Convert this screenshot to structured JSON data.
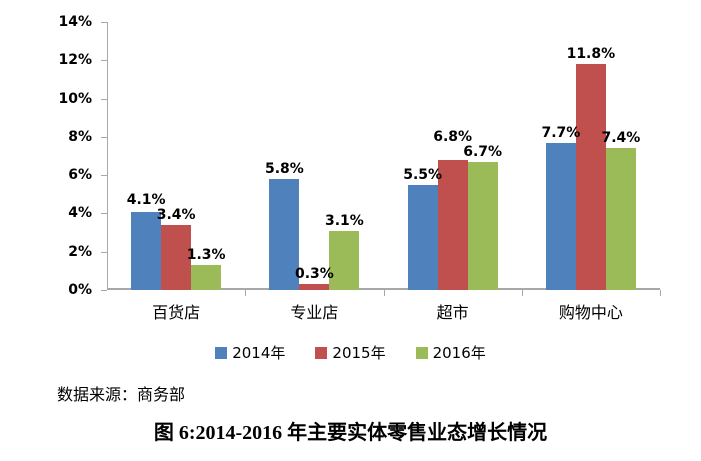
{
  "chart_data": {
    "type": "bar",
    "categories": [
      "百货店",
      "专业店",
      "超市",
      "购物中心"
    ],
    "series": [
      {
        "name": "2014年",
        "color": "#4F81BD",
        "values": [
          4.1,
          5.8,
          5.5,
          7.7
        ]
      },
      {
        "name": "2015年",
        "color": "#C0504D",
        "values": [
          3.4,
          0.3,
          6.8,
          11.8
        ]
      },
      {
        "name": "2016年",
        "color": "#9BBB59",
        "values": [
          1.3,
          3.1,
          6.7,
          7.4
        ]
      }
    ],
    "ylim": [
      0,
      14
    ],
    "yticks": [
      0,
      2,
      4,
      6,
      8,
      10,
      12,
      14
    ],
    "ytick_suffix": "%",
    "data_label_suffix": "%",
    "grid": false,
    "legend_position": "bottom",
    "title": "图 6:2014-2016 年主要实体零售业态增长情况",
    "xlabel": "",
    "ylabel": ""
  },
  "source_note": "数据来源：商务部",
  "caption": "图 6:2014-2016 年主要实体零售业态增长情况",
  "colors": {
    "axis": "#A8A8A8",
    "text": "#000000",
    "background": "#FFFFFF"
  }
}
